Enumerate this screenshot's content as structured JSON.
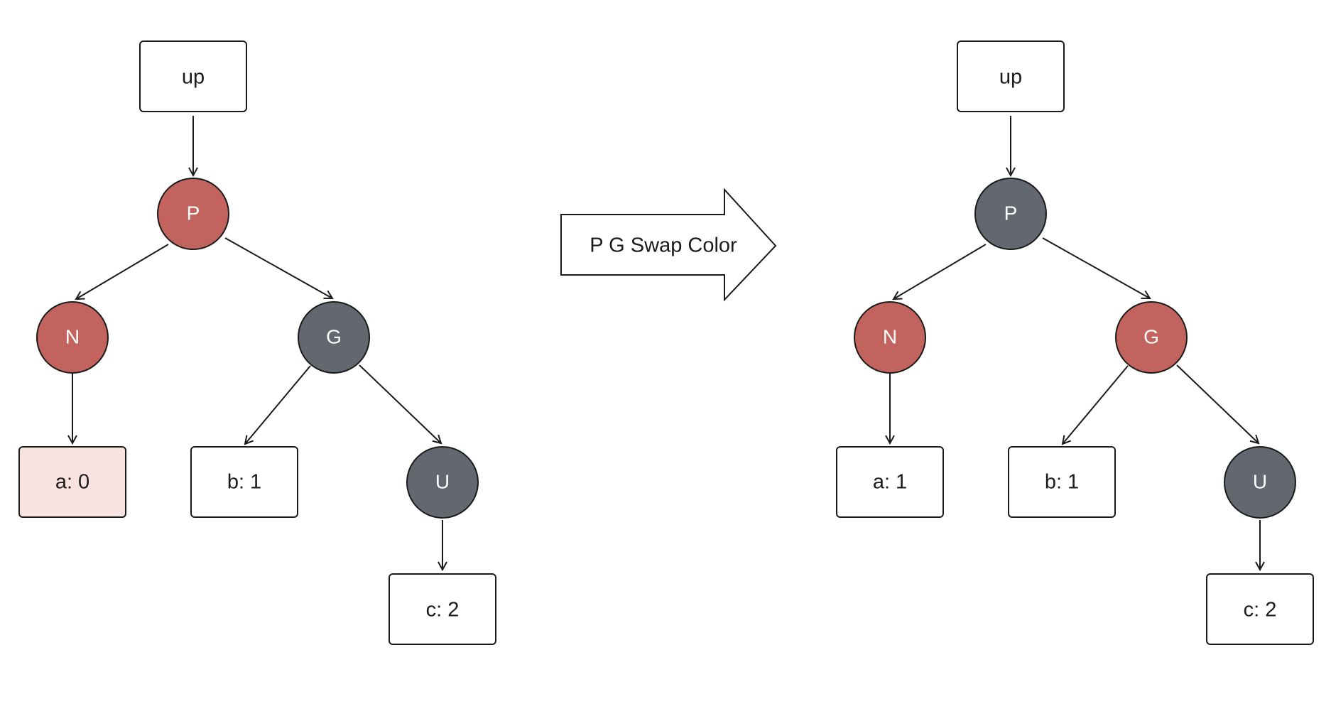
{
  "colors": {
    "red_node": "#c2645d",
    "black_node": "#636870",
    "highlight_box": "#f9e3e0",
    "box_fill": "#ffffff",
    "stroke": "#1b1b1b",
    "node_text": "#ffffff",
    "box_text": "#1b1b1b"
  },
  "before": {
    "up": "up",
    "p": "P",
    "n": "N",
    "g": "G",
    "u": "U",
    "a": "a: 0",
    "b": "b: 1",
    "c": "c: 2"
  },
  "transition": {
    "label": "P G Swap Color"
  },
  "after": {
    "up": "up",
    "p": "P",
    "n": "N",
    "g": "G",
    "u": "U",
    "a": "a: 1",
    "b": "b: 1",
    "c": "c: 2"
  }
}
